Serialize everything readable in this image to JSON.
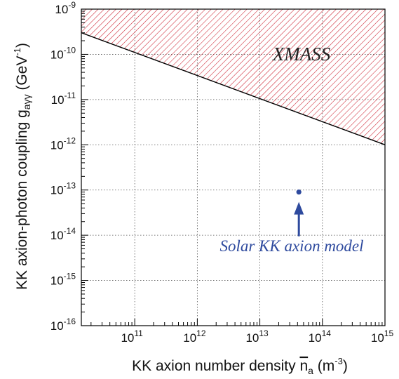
{
  "chart_data": {
    "type": "line",
    "xscale": "log",
    "yscale": "log",
    "xlim": [
      14000000000.0,
      1000000000000000.0
    ],
    "ylim": [
      1e-16,
      1e-09
    ],
    "grid": true,
    "x_ticks": [
      {
        "value": 100000000000.0,
        "base": "10",
        "exp": "11"
      },
      {
        "value": 1000000000000.0,
        "base": "10",
        "exp": "12"
      },
      {
        "value": 10000000000000.0,
        "base": "10",
        "exp": "13"
      },
      {
        "value": 100000000000000.0,
        "base": "10",
        "exp": "14"
      },
      {
        "value": 1000000000000000.0,
        "base": "10",
        "exp": "15"
      }
    ],
    "y_ticks": [
      {
        "value": 1e-09,
        "base": "10",
        "exp": "-9"
      },
      {
        "value": 1e-10,
        "base": "10",
        "exp": "-10"
      },
      {
        "value": 1e-11,
        "base": "10",
        "exp": "-11"
      },
      {
        "value": 1e-12,
        "base": "10",
        "exp": "-12"
      },
      {
        "value": 1e-13,
        "base": "10",
        "exp": "-13"
      },
      {
        "value": 1e-14,
        "base": "10",
        "exp": "-14"
      },
      {
        "value": 1e-15,
        "base": "10",
        "exp": "-15"
      },
      {
        "value": 1e-16,
        "base": "10",
        "exp": "-16"
      }
    ],
    "xlabel": {
      "main": "KK axion number density ",
      "symbol": "n",
      "sub": "a",
      "unit_open": " (m",
      "unit_exp": "-3",
      "unit_close": ")"
    },
    "ylabel": {
      "main": "KK axion-photon coupling g",
      "sub": "aγγ",
      "unit_open": "  (GeV",
      "unit_exp": "-1",
      "unit_close": ")"
    },
    "series": [
      {
        "name": "XMASS",
        "kind": "exclusion-limit",
        "x": [
          14000000000.0,
          1000000000000000.0
        ],
        "y": [
          3e-10,
          1e-12
        ],
        "excluded_above": true,
        "color": "#cc1f2e"
      }
    ],
    "points": [
      {
        "name": "Solar KK axion model",
        "x": 42000000000000.0,
        "y": 9e-14,
        "color": "#2e4a9e"
      }
    ],
    "annotations": {
      "region_label": "XMASS",
      "point_label": "Solar KK axion model"
    },
    "colors": {
      "exclusion": "#cc1f2e",
      "model": "#2e4a9e",
      "grid": "#555555"
    }
  }
}
